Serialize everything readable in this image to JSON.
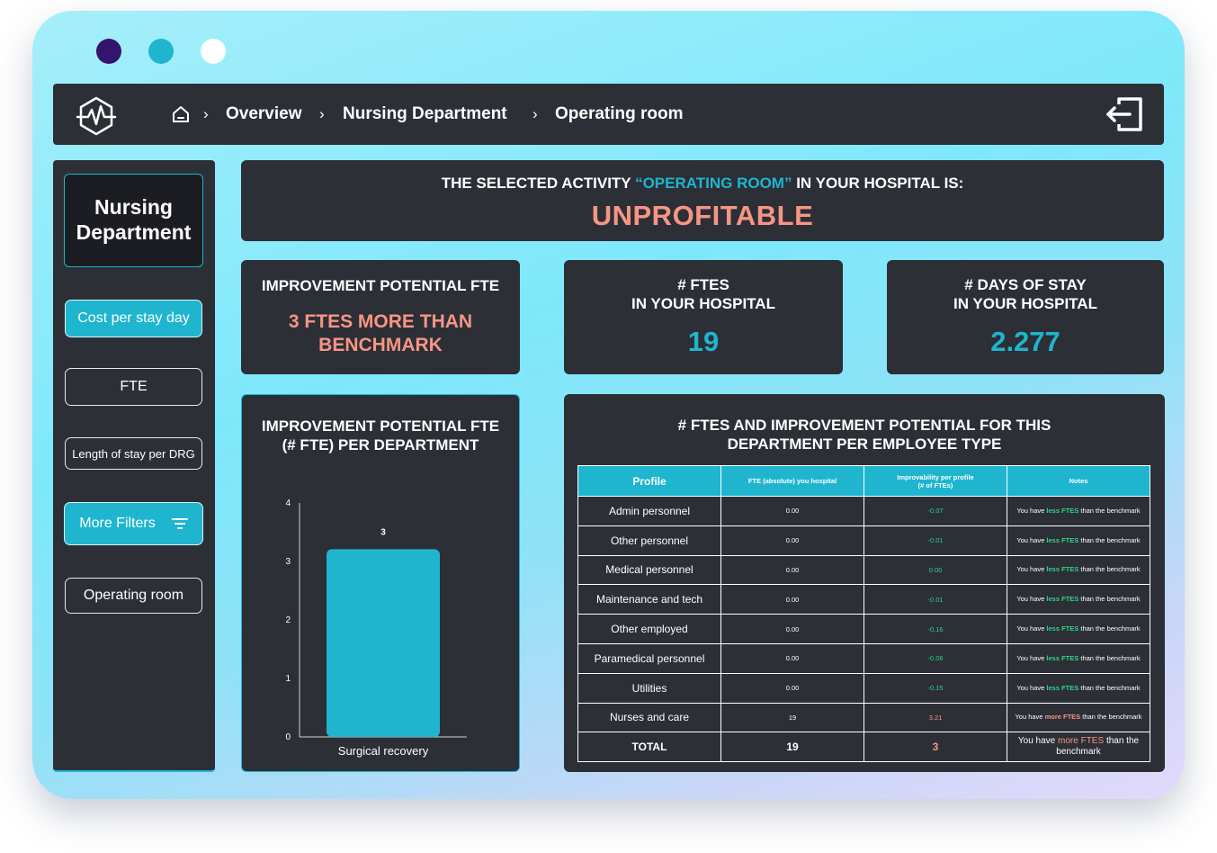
{
  "window": {
    "dots": [
      "#35156c",
      "#1fb5cf",
      "#ffffff"
    ]
  },
  "topbar": {
    "logo_icon": "heart-monitor-hexagon-icon",
    "home_icon": "home-icon",
    "breadcrumb": [
      "Overview",
      "Nursing Department",
      "Operating room"
    ],
    "separator": "›",
    "exit_icon": "logout-icon"
  },
  "sidebar": {
    "department": "Nursing Department",
    "buttons": {
      "cost_per_stay_day": "Cost per stay day",
      "fte": "FTE",
      "length_of_stay": "Length of stay per DRG",
      "more_filters": "More Filters",
      "operating_room": "Operating room"
    },
    "filter_icon": "filter-icon"
  },
  "headline": {
    "prefix": "THE SELECTED ACTIVITY ",
    "activity": "“OPERATING ROOM”",
    "suffix": " IN YOUR HOSPITAL IS:",
    "status": "UNPROFITABLE"
  },
  "kpis": {
    "improvement": {
      "title": "IMPROVEMENT POTENTIAL FTE",
      "value_line1": "3 FTES MORE THAN",
      "value_line2": "BENCHMARK"
    },
    "ftes": {
      "title_line1": "# FTES",
      "title_line2": "IN YOUR HOSPITAL",
      "value": "19"
    },
    "days": {
      "title_line1": "# DAYS OF STAY",
      "title_line2": "IN YOUR HOSPITAL",
      "value": "2.277"
    }
  },
  "chart": {
    "title_line1": "IMPROVEMENT POTENTIAL FTE",
    "title_line2": "(# FTE) PER DEPARTMENT"
  },
  "chart_data": {
    "type": "bar",
    "title": "IMPROVEMENT POTENTIAL FTE (# FTE) PER DEPARTMENT",
    "categories": [
      "Surgical recovery"
    ],
    "values": [
      3.21
    ],
    "data_labels": [
      "3"
    ],
    "ylim": [
      0,
      4
    ],
    "yticks": [
      0,
      1,
      2,
      3,
      4
    ],
    "grid": false,
    "bar_color": "#1fb5cf"
  },
  "table": {
    "title_line1": "# FTES AND IMPROVEMENT POTENTIAL FOR THIS",
    "title_line2": "DEPARTMENT PER EMPLOYEE TYPE",
    "headers": {
      "profile": "Profile",
      "fte": "FTE (absolute) you hospital",
      "improv_line1": "Improvability per profile",
      "improv_line2": "(# of FTEs)",
      "notes": "Notes"
    },
    "note_words": {
      "you_have": "You have",
      "less": "less FTES",
      "more": "more FTES",
      "than": "than the benchmark"
    },
    "rows": [
      {
        "profile": "Admin personnel",
        "fte": "0.00",
        "improv": "-0.07",
        "note": "less"
      },
      {
        "profile": "Other personnel",
        "fte": "0.00",
        "improv": "-0.01",
        "note": "less"
      },
      {
        "profile": "Medical personnel",
        "fte": "0.00",
        "improv": "0.00",
        "note": "less"
      },
      {
        "profile": "Maintenance and tech",
        "fte": "0.00",
        "improv": "-0.01",
        "note": "less"
      },
      {
        "profile": "Other employed",
        "fte": "0.00",
        "improv": "-0.16",
        "note": "less"
      },
      {
        "profile": "Paramedical personnel",
        "fte": "0.00",
        "improv": "-0.06",
        "note": "less"
      },
      {
        "profile": "Utilities",
        "fte": "0.00",
        "improv": "-0.15",
        "note": "less"
      },
      {
        "profile": "Nurses and care",
        "fte": "19",
        "improv": "3.21",
        "note": "more"
      }
    ],
    "total": {
      "profile": "TOTAL",
      "fte": "19",
      "improv": "3",
      "note": "more"
    }
  },
  "colors": {
    "accent": "#1fb5cf",
    "alert": "#f79585",
    "positive": "#2fd48a",
    "panel": "#2c2f36"
  }
}
